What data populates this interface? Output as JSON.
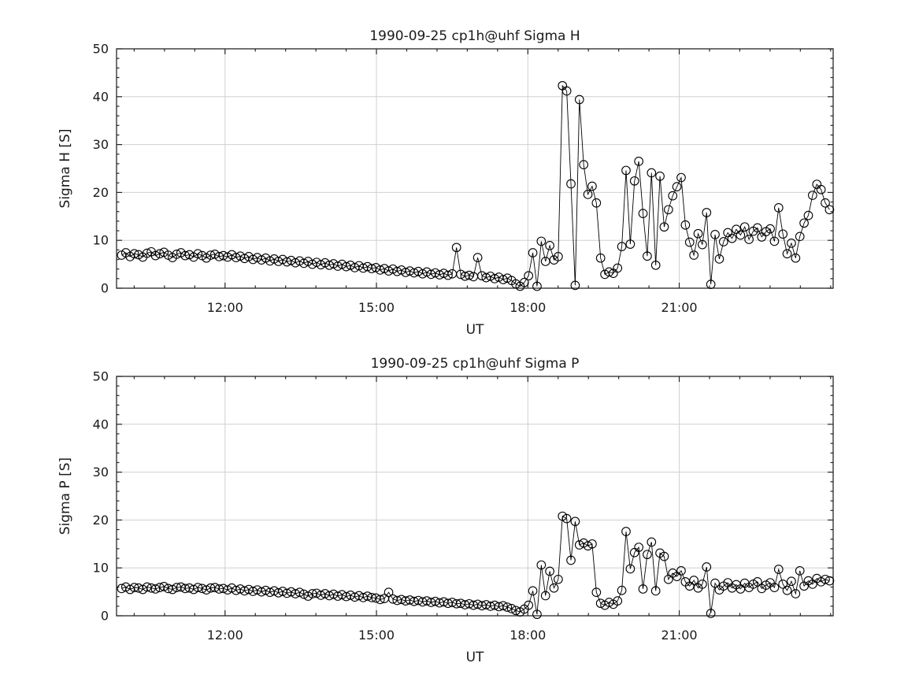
{
  "figure": {
    "background": "#ffffff",
    "description": "Two stacked time-series panels of EISCAT sigma values versus UT"
  },
  "colors": {
    "marker": "#000000",
    "line": "#000000",
    "grid": "#d0d0d0",
    "spine": "#262626",
    "text": "#1a1a1a",
    "background": "#ffffff"
  },
  "chart_data": [
    {
      "type": "scatter",
      "series_name": "Sigma H",
      "title": "1990-09-25  cp1h@uhf Sigma H",
      "xlabel": "UT",
      "ylabel": "Sigma H [S]",
      "ylim": [
        0,
        50
      ],
      "xlim_hours": [
        9.85,
        24.05
      ],
      "x_tick_hours": [
        12,
        15,
        18,
        21
      ],
      "x_tick_labels": [
        "12:00",
        "15:00",
        "18:00",
        "21:00"
      ],
      "y_ticks": [
        0,
        10,
        20,
        30,
        40,
        50
      ],
      "y_tick_labels": [
        "0",
        "10",
        "20",
        "30",
        "40",
        "50"
      ],
      "x_minor_step_hours": 0.6,
      "y_minor_step": 2,
      "grid": true,
      "legend": "none",
      "marker": "open-circle",
      "connect_points": true,
      "t_start_hours": 9.95,
      "t_step_hours": 0.084,
      "values": [
        6.9,
        7.4,
        6.6,
        7.2,
        7.0,
        6.5,
        7.3,
        7.6,
        6.8,
        7.2,
        7.5,
        6.9,
        6.4,
        7.1,
        7.4,
        6.8,
        7.0,
        6.5,
        7.2,
        6.8,
        6.3,
        6.9,
        7.1,
        6.6,
        6.8,
        6.5,
        7.0,
        6.4,
        6.7,
        6.2,
        6.6,
        6.0,
        6.4,
        5.9,
        6.3,
        5.7,
        6.1,
        5.6,
        6.0,
        5.5,
        5.8,
        5.3,
        5.7,
        5.2,
        5.6,
        5.0,
        5.4,
        4.9,
        5.3,
        4.8,
        5.1,
        4.6,
        5.0,
        4.5,
        4.8,
        4.3,
        4.7,
        4.2,
        4.5,
        4.1,
        4.3,
        3.8,
        4.1,
        3.6,
        4.0,
        3.5,
        3.8,
        3.3,
        3.6,
        3.2,
        3.5,
        3.0,
        3.4,
        2.9,
        3.2,
        2.8,
        3.1,
        2.7,
        3.0,
        8.5,
        2.9,
        2.5,
        2.7,
        2.4,
        6.4,
        2.6,
        2.2,
        2.5,
        2.0,
        2.3,
        1.8,
        2.1,
        1.6,
        0.9,
        0.4,
        1.2,
        2.6,
        7.4,
        0.4,
        9.8,
        5.6,
        8.9,
        5.9,
        6.6,
        42.3,
        41.2,
        21.8,
        0.6,
        39.4,
        25.8,
        19.6,
        21.3,
        17.8,
        6.3,
        2.9,
        3.4,
        3.1,
        4.2,
        8.7,
        24.6,
        9.2,
        22.4,
        26.5,
        15.6,
        6.7,
        24.1,
        4.8,
        23.4,
        12.8,
        16.4,
        19.3,
        21.2,
        23.1,
        13.2,
        9.6,
        6.9,
        11.4,
        9.1,
        15.8,
        0.8,
        11.2,
        6.1,
        9.7,
        11.6,
        10.4,
        12.3,
        11.1,
        12.8,
        10.2,
        11.9,
        12.6,
        10.7,
        11.8,
        12.4,
        9.8,
        16.8,
        11.3,
        7.2,
        9.4,
        6.3,
        10.8,
        13.6,
        15.2,
        19.4,
        21.7,
        20.6,
        17.8,
        16.4
      ]
    },
    {
      "type": "scatter",
      "series_name": "Sigma P",
      "title": "1990-09-25  cp1h@uhf Sigma P",
      "xlabel": "UT",
      "ylabel": "Sigma P [S]",
      "ylim": [
        0,
        50
      ],
      "xlim_hours": [
        9.85,
        24.05
      ],
      "x_tick_hours": [
        12,
        15,
        18,
        21
      ],
      "x_tick_labels": [
        "12:00",
        "15:00",
        "18:00",
        "21:00"
      ],
      "y_ticks": [
        0,
        10,
        20,
        30,
        40,
        50
      ],
      "y_tick_labels": [
        "0",
        "10",
        "20",
        "30",
        "40",
        "50"
      ],
      "x_minor_step_hours": 0.6,
      "y_minor_step": 2,
      "grid": true,
      "legend": "none",
      "marker": "open-circle",
      "connect_points": true,
      "t_start_hours": 9.95,
      "t_step_hours": 0.084,
      "values": [
        5.7,
        6.0,
        5.5,
        5.9,
        5.8,
        5.5,
        6.0,
        5.8,
        5.6,
        5.9,
        6.1,
        5.7,
        5.5,
        5.9,
        6.0,
        5.7,
        5.8,
        5.5,
        5.9,
        5.7,
        5.4,
        5.8,
        5.9,
        5.6,
        5.7,
        5.4,
        5.8,
        5.3,
        5.6,
        5.2,
        5.5,
        5.1,
        5.4,
        5.0,
        5.3,
        4.9,
        5.2,
        4.8,
        5.1,
        4.7,
        5.0,
        4.6,
        4.9,
        4.5,
        4.1,
        4.6,
        4.7,
        4.3,
        4.6,
        4.2,
        4.5,
        4.1,
        4.4,
        4.0,
        4.3,
        3.9,
        4.2,
        3.8,
        4.1,
        3.8,
        3.7,
        3.4,
        3.6,
        4.9,
        3.5,
        3.2,
        3.4,
        3.1,
        3.3,
        3.0,
        3.2,
        2.9,
        3.1,
        2.8,
        3.0,
        2.7,
        2.9,
        2.6,
        2.8,
        2.5,
        2.6,
        2.3,
        2.5,
        2.2,
        2.4,
        2.1,
        2.3,
        2.0,
        2.2,
        1.9,
        2.1,
        1.8,
        1.5,
        1.1,
        0.8,
        1.4,
        2.2,
        5.2,
        0.3,
        10.6,
        4.2,
        9.3,
        5.8,
        7.6,
        20.8,
        20.3,
        11.6,
        19.7,
        14.8,
        15.2,
        14.6,
        15.0,
        4.9,
        2.6,
        2.2,
        2.8,
        2.4,
        3.1,
        5.3,
        17.6,
        9.8,
        13.2,
        14.3,
        5.6,
        12.8,
        15.4,
        5.2,
        13.1,
        12.4,
        7.6,
        8.9,
        8.2,
        9.4,
        7.1,
        6.2,
        7.4,
        5.8,
        6.6,
        10.2,
        0.5,
        6.8,
        5.4,
        6.2,
        6.9,
        5.8,
        6.5,
        5.6,
        6.8,
        5.9,
        6.6,
        7.1,
        5.7,
        6.4,
        6.9,
        5.9,
        9.7,
        6.6,
        5.3,
        7.2,
        4.6,
        9.4,
        6.2,
        7.3,
        6.6,
        7.8,
        7.1,
        7.6,
        7.3
      ]
    }
  ]
}
